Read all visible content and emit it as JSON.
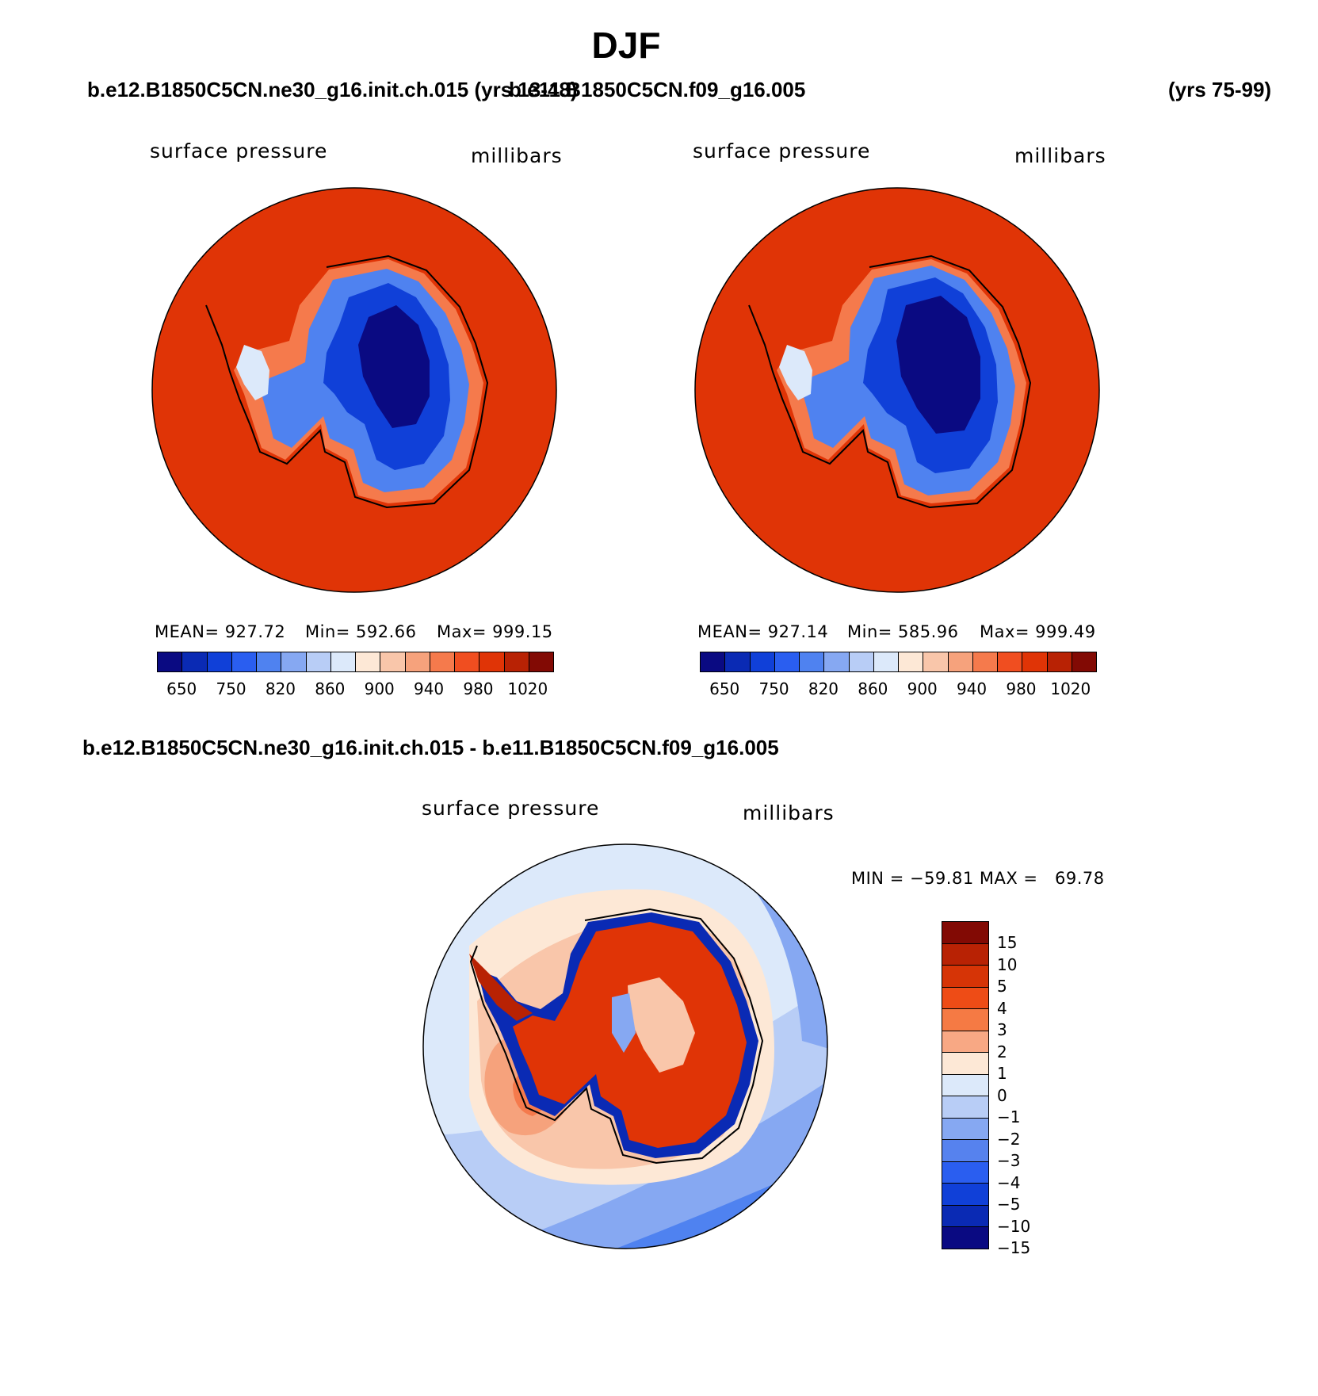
{
  "figure": {
    "title": "DJF",
    "case1_title": "b.e12.B1850C5CN.ne30_g16.init.ch.015 (yrs 13-48)",
    "case2_title": "b.e11.B1850C5CN.f09_g16.005",
    "case2_years": "(yrs 75-99)",
    "diff_title": "b.e12.B1850C5CN.ne30_g16.init.ch.015 - b.e11.B1850C5CN.f09_g16.005"
  },
  "panels": {
    "left": {
      "variable": "surface pressure",
      "units": "millibars",
      "mean": "MEAN= 927.72",
      "min": "Min= 592.66",
      "max": "Max= 999.15"
    },
    "right": {
      "variable": "surface pressure",
      "units": "millibars",
      "mean": "MEAN= 927.14",
      "min": "Min= 585.96",
      "max": "Max= 999.49"
    },
    "diff": {
      "variable": "surface pressure",
      "units": "millibars",
      "minmax": "MIN = −59.81 MAX =   69.78"
    }
  },
  "colorbar_abs": {
    "colors": [
      "#0a0a82",
      "#0a2ab4",
      "#1040d8",
      "#2a5ef0",
      "#4f82f0",
      "#86a8f2",
      "#b8cdf6",
      "#dce9fa",
      "#fde8d6",
      "#f9c6aa",
      "#f6a27c",
      "#f57a4c",
      "#f04e20",
      "#e03406",
      "#b82204",
      "#820a04"
    ],
    "tick_labels": [
      "650",
      "750",
      "820",
      "860",
      "900",
      "940",
      "980",
      "1020"
    ]
  },
  "colorbar_diff": {
    "colors": [
      "#820a04",
      "#b82204",
      "#d63406",
      "#ee4c16",
      "#f57a44",
      "#f8a884",
      "#fde8d6",
      "#dce9fa",
      "#b8cdf6",
      "#86a8f2",
      "#5682ee",
      "#2a5ef0",
      "#1040d8",
      "#0a2ab4",
      "#0a0a82"
    ],
    "tick_labels": [
      "15",
      "10",
      "5",
      "4",
      "3",
      "2",
      "1",
      "0",
      "−1",
      "−2",
      "−3",
      "−4",
      "−5",
      "−10",
      "−15"
    ]
  },
  "map_colors": {
    "ocean_abs": "#e03406",
    "coast_halo": "#f57a4c",
    "ice_outer": "#4f82f0",
    "ice_mid": "#1040d8",
    "ice_core": "#0a0a82",
    "peninsula": "#dce9fa"
  }
}
